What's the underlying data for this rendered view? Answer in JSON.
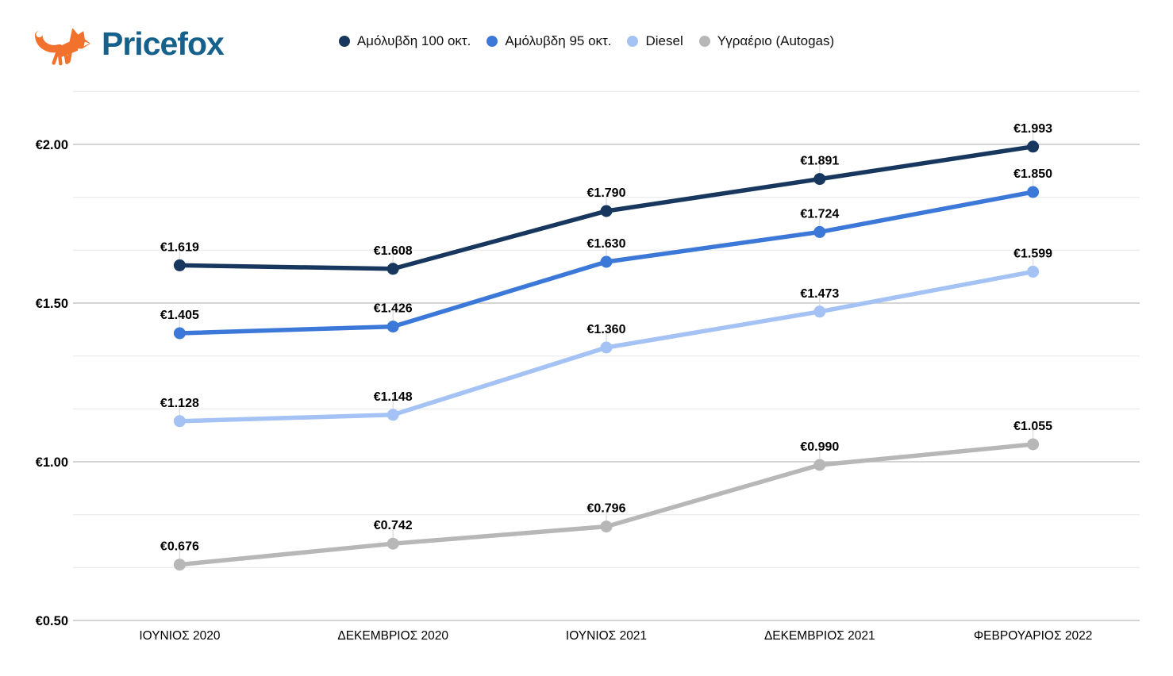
{
  "logo": {
    "text": "Pricefox",
    "text_color": "#16618c",
    "icon": "fox-icon",
    "icon_color": "#f2712d"
  },
  "chart_data": {
    "type": "line",
    "title": "",
    "xlabel": "",
    "ylabel": "",
    "categories": [
      "ΙΟΥΝΙΟΣ 2020",
      "ΔΕΚΕΜΒΡΙΟΣ 2020",
      "ΙΟΥΝΙΟΣ 2021",
      "ΔΕΚΕΜΒΡΙΟΣ 2021",
      "ΦΕΒΡΟΥΑΡΙΟΣ 2022"
    ],
    "series": [
      {
        "name": "Αμόλυβδη 100 οκτ.",
        "color": "#17375e",
        "values": [
          1.619,
          1.608,
          1.79,
          1.891,
          1.993
        ]
      },
      {
        "name": "Αμόλυβδη 95 οκτ.",
        "color": "#3c78d8",
        "values": [
          1.405,
          1.426,
          1.63,
          1.724,
          1.85
        ]
      },
      {
        "name": "Diesel",
        "color": "#a4c2f4",
        "values": [
          1.128,
          1.148,
          1.36,
          1.473,
          1.599
        ]
      },
      {
        "name": "Υγραέριο (Autogas)",
        "color": "#b7b7b7",
        "values": [
          0.676,
          0.742,
          0.796,
          0.99,
          1.055
        ]
      }
    ],
    "value_prefix": "€",
    "value_decimals": 3,
    "y_ticks": [
      {
        "value": 0.5,
        "label": "€0.50"
      },
      {
        "value": 1.0,
        "label": "€1.00"
      },
      {
        "value": 1.5,
        "label": "€1.50"
      },
      {
        "value": 2.0,
        "label": "€2.00"
      }
    ],
    "ylim": [
      0.5,
      2.1667
    ],
    "y_minor_step": 0.16667,
    "grid": true,
    "legend_position": "top",
    "grid_minor_color": "#eaeaea",
    "grid_major_color": "#c7c7c7",
    "leader_line_color": "#dfdfdf",
    "background": "#ffffff"
  }
}
